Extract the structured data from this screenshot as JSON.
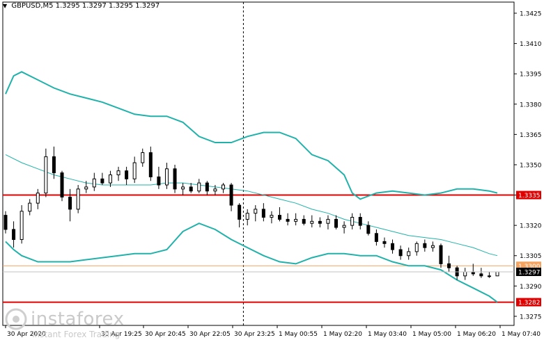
{
  "header": {
    "symbol": "GBPUSD,M5",
    "ohlc": "1.3295 1.3297 1.3295 1.3297"
  },
  "watermark": {
    "brand": "instaforex",
    "tagline": "Instant Forex Trading"
  },
  "chart_data": {
    "type": "candlestick",
    "title": "",
    "xlabel": "",
    "ylabel": "",
    "ylim": [
      1.32705,
      1.34305
    ],
    "y_ticks": [
      1.3425,
      1.341,
      1.3395,
      1.338,
      1.3365,
      1.335,
      1.3335,
      1.332,
      1.3305,
      1.329,
      1.3275
    ],
    "y_tick_labels": [
      "1.3425",
      "1.3410",
      "1.3395",
      "1.3380",
      "1.3365",
      "1.3350",
      "1.3335",
      "1.3320",
      "1.3305",
      "1.3290",
      "1.3275"
    ],
    "x_tick_labels": [
      "30 Apr 2020",
      "30 Apr 19:25",
      "30 Apr 20:45",
      "30 Apr 22:05",
      "30 Apr 23:25",
      "1 May 00:55",
      "1 May 02:20",
      "1 May 03:40",
      "1 May 05:00",
      "1 May 06:20",
      "1 May 07:40"
    ],
    "grid": false,
    "horizontal_levels": [
      {
        "value": 1.3335,
        "label": "1.3335",
        "color": "#e00000",
        "kind": "resistance"
      },
      {
        "value": 1.33,
        "label": "1.3300",
        "color": "#f4a460",
        "kind": "level"
      },
      {
        "value": 1.3282,
        "label": "1.3282",
        "color": "#e00000",
        "kind": "support"
      }
    ],
    "current_price": {
      "value": 1.3297,
      "label": "1.3297",
      "color": "#000000"
    },
    "crosshair_vertical": "30 Apr 23:25",
    "indicators": [
      {
        "type": "bollinger_upper",
        "color": "#20b2aa",
        "points": [
          [
            0,
            1.3385
          ],
          [
            1,
            1.3394
          ],
          [
            2,
            1.3396
          ],
          [
            4,
            1.3392
          ],
          [
            6,
            1.3388
          ],
          [
            8,
            1.3385
          ],
          [
            10,
            1.3383
          ],
          [
            12,
            1.3381
          ],
          [
            14,
            1.3378
          ],
          [
            16,
            1.3375
          ],
          [
            18,
            1.3374
          ],
          [
            20,
            1.3374
          ],
          [
            22,
            1.3371
          ],
          [
            24,
            1.3364
          ],
          [
            26,
            1.3361
          ],
          [
            28,
            1.3361
          ],
          [
            30,
            1.3364
          ],
          [
            32,
            1.3366
          ],
          [
            34,
            1.3366
          ],
          [
            36,
            1.3363
          ],
          [
            38,
            1.3355
          ],
          [
            40,
            1.3352
          ],
          [
            42,
            1.3345
          ],
          [
            43,
            1.3336
          ],
          [
            44,
            1.3333
          ],
          [
            46,
            1.3336
          ],
          [
            48,
            1.3337
          ],
          [
            50,
            1.3336
          ],
          [
            52,
            1.3335
          ],
          [
            54,
            1.3336
          ],
          [
            56,
            1.3338
          ],
          [
            58,
            1.3338
          ],
          [
            60,
            1.3337
          ],
          [
            61,
            1.3336
          ]
        ]
      },
      {
        "type": "bollinger_middle",
        "color": "#20b2aa",
        "points": [
          [
            0,
            1.3355
          ],
          [
            2,
            1.3351
          ],
          [
            4,
            1.3348
          ],
          [
            6,
            1.3345
          ],
          [
            8,
            1.3343
          ],
          [
            10,
            1.3341
          ],
          [
            12,
            1.334
          ],
          [
            14,
            1.334
          ],
          [
            16,
            1.334
          ],
          [
            18,
            1.334
          ],
          [
            20,
            1.3341
          ],
          [
            22,
            1.3341
          ],
          [
            24,
            1.334
          ],
          [
            26,
            1.3339
          ],
          [
            28,
            1.3338
          ],
          [
            30,
            1.3337
          ],
          [
            32,
            1.3335
          ],
          [
            34,
            1.3333
          ],
          [
            36,
            1.3331
          ],
          [
            38,
            1.3328
          ],
          [
            40,
            1.3326
          ],
          [
            42,
            1.3323
          ],
          [
            44,
            1.3321
          ],
          [
            46,
            1.3319
          ],
          [
            48,
            1.3317
          ],
          [
            50,
            1.3315
          ],
          [
            52,
            1.3314
          ],
          [
            54,
            1.3313
          ],
          [
            56,
            1.3311
          ],
          [
            58,
            1.3309
          ],
          [
            60,
            1.3306
          ],
          [
            61,
            1.3305
          ]
        ]
      },
      {
        "type": "bollinger_lower",
        "color": "#20b2aa",
        "points": [
          [
            0,
            1.3312
          ],
          [
            1,
            1.3308
          ],
          [
            2,
            1.3305
          ],
          [
            4,
            1.3302
          ],
          [
            6,
            1.3302
          ],
          [
            8,
            1.3302
          ],
          [
            10,
            1.3303
          ],
          [
            12,
            1.3304
          ],
          [
            14,
            1.3305
          ],
          [
            16,
            1.3306
          ],
          [
            18,
            1.3306
          ],
          [
            20,
            1.3308
          ],
          [
            22,
            1.3317
          ],
          [
            24,
            1.3321
          ],
          [
            26,
            1.3318
          ],
          [
            28,
            1.3313
          ],
          [
            30,
            1.3309
          ],
          [
            32,
            1.3305
          ],
          [
            34,
            1.3302
          ],
          [
            36,
            1.3301
          ],
          [
            38,
            1.3304
          ],
          [
            40,
            1.3306
          ],
          [
            42,
            1.3306
          ],
          [
            44,
            1.3305
          ],
          [
            46,
            1.3305
          ],
          [
            48,
            1.3302
          ],
          [
            50,
            1.33
          ],
          [
            52,
            1.33
          ],
          [
            54,
            1.3298
          ],
          [
            56,
            1.3293
          ],
          [
            58,
            1.3289
          ],
          [
            60,
            1.3285
          ],
          [
            61,
            1.3282
          ]
        ]
      }
    ],
    "candles": [
      [
        0,
        1.3325,
        1.3327,
        1.3316,
        1.3318
      ],
      [
        1,
        1.3318,
        1.3322,
        1.3309,
        1.3313
      ],
      [
        2,
        1.3313,
        1.333,
        1.3311,
        1.3327
      ],
      [
        3,
        1.3327,
        1.3333,
        1.3325,
        1.3331
      ],
      [
        4,
        1.3331,
        1.3338,
        1.3328,
        1.3336
      ],
      [
        5,
        1.3336,
        1.3358,
        1.3334,
        1.3354
      ],
      [
        6,
        1.3354,
        1.3359,
        1.3343,
        1.3346
      ],
      [
        7,
        1.3346,
        1.3347,
        1.3332,
        1.3334
      ],
      [
        8,
        1.3334,
        1.3338,
        1.3322,
        1.3328
      ],
      [
        9,
        1.3328,
        1.334,
        1.3326,
        1.3338
      ],
      [
        10,
        1.3338,
        1.3342,
        1.3336,
        1.3339
      ],
      [
        11,
        1.3339,
        1.3346,
        1.3337,
        1.3343
      ],
      [
        12,
        1.3343,
        1.3346,
        1.334,
        1.3341
      ],
      [
        13,
        1.3341,
        1.3347,
        1.3339,
        1.3345
      ],
      [
        14,
        1.3345,
        1.3349,
        1.3342,
        1.3347
      ],
      [
        15,
        1.3347,
        1.3349,
        1.334,
        1.3343
      ],
      [
        16,
        1.3343,
        1.3354,
        1.3341,
        1.3351
      ],
      [
        17,
        1.3351,
        1.3358,
        1.3349,
        1.3356
      ],
      [
        18,
        1.3356,
        1.3359,
        1.3342,
        1.3344
      ],
      [
        19,
        1.3344,
        1.3349,
        1.3338,
        1.334
      ],
      [
        20,
        1.334,
        1.3351,
        1.3338,
        1.3348
      ],
      [
        21,
        1.3348,
        1.335,
        1.3336,
        1.3338
      ],
      [
        22,
        1.3338,
        1.3341,
        1.3335,
        1.3339
      ],
      [
        23,
        1.3339,
        1.3341,
        1.3336,
        1.3337
      ],
      [
        24,
        1.3337,
        1.3343,
        1.3336,
        1.3341
      ],
      [
        25,
        1.3341,
        1.3342,
        1.3335,
        1.3337
      ],
      [
        26,
        1.3337,
        1.334,
        1.3335,
        1.3338
      ],
      [
        27,
        1.3338,
        1.3341,
        1.3336,
        1.334
      ],
      [
        28,
        1.334,
        1.3341,
        1.3327,
        1.333
      ],
      [
        29,
        1.333,
        1.3331,
        1.3319,
        1.3323
      ],
      [
        30,
        1.3323,
        1.3328,
        1.332,
        1.3326
      ],
      [
        31,
        1.3326,
        1.333,
        1.3322,
        1.3328
      ],
      [
        32,
        1.3328,
        1.3331,
        1.3322,
        1.3324
      ],
      [
        33,
        1.3324,
        1.3327,
        1.3321,
        1.3325
      ],
      [
        34,
        1.3325,
        1.3329,
        1.3322,
        1.3323
      ],
      [
        35,
        1.3323,
        1.3326,
        1.332,
        1.3322
      ],
      [
        36,
        1.3322,
        1.3326,
        1.332,
        1.3323
      ],
      [
        37,
        1.3323,
        1.3325,
        1.332,
        1.3321
      ],
      [
        38,
        1.3321,
        1.3325,
        1.3319,
        1.3322
      ],
      [
        39,
        1.3322,
        1.3324,
        1.3319,
        1.3321
      ],
      [
        40,
        1.3321,
        1.3325,
        1.3318,
        1.3323
      ],
      [
        41,
        1.3323,
        1.3325,
        1.3318,
        1.3319
      ],
      [
        42,
        1.3319,
        1.3322,
        1.3316,
        1.332
      ],
      [
        43,
        1.332,
        1.3326,
        1.3318,
        1.3324
      ],
      [
        44,
        1.3324,
        1.3326,
        1.3318,
        1.332
      ],
      [
        45,
        1.332,
        1.3322,
        1.3315,
        1.3316
      ],
      [
        46,
        1.3316,
        1.3318,
        1.331,
        1.3312
      ],
      [
        47,
        1.3312,
        1.3314,
        1.3309,
        1.3311
      ],
      [
        48,
        1.3311,
        1.3313,
        1.3306,
        1.3308
      ],
      [
        49,
        1.3308,
        1.331,
        1.3303,
        1.3305
      ],
      [
        50,
        1.3305,
        1.3309,
        1.3303,
        1.3307
      ],
      [
        51,
        1.3307,
        1.3312,
        1.3305,
        1.3311
      ],
      [
        52,
        1.3311,
        1.3313,
        1.3307,
        1.3309
      ],
      [
        53,
        1.3309,
        1.3312,
        1.3307,
        1.331
      ],
      [
        54,
        1.331,
        1.3311,
        1.3299,
        1.3301
      ],
      [
        55,
        1.3301,
        1.3305,
        1.3297,
        1.3299
      ],
      [
        56,
        1.3299,
        1.33,
        1.3293,
        1.3295
      ],
      [
        57,
        1.3295,
        1.3299,
        1.3293,
        1.3297
      ],
      [
        58,
        1.3297,
        1.3301,
        1.3295,
        1.3296
      ],
      [
        59,
        1.3296,
        1.3299,
        1.3294,
        1.3295
      ],
      [
        60,
        1.3295,
        1.3297,
        1.3294,
        1.3295
      ],
      [
        61,
        1.3295,
        1.3297,
        1.3295,
        1.3297
      ]
    ]
  }
}
